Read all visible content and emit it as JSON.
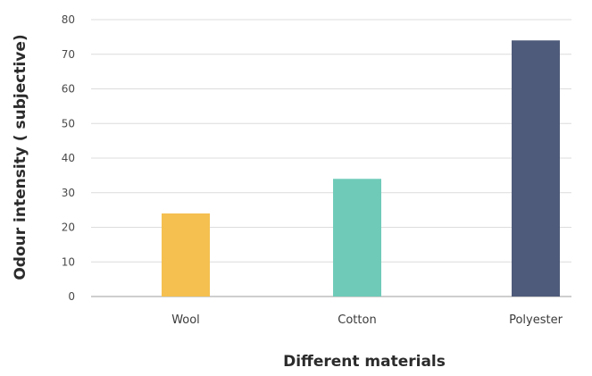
{
  "chart_data": {
    "type": "bar",
    "categories": [
      "Wool",
      "Cotton",
      "Polyester"
    ],
    "values": [
      24,
      34,
      74
    ],
    "colors": [
      "#F5C050",
      "#6FCBB8",
      "#4F5B7A"
    ],
    "title": "",
    "xlabel": "Different materials",
    "ylabel": "Odour intensity ( subjective)",
    "ylim": [
      0,
      80
    ],
    "yticks": [
      0,
      10,
      20,
      30,
      40,
      50,
      60,
      70,
      80
    ],
    "grid": true,
    "legend": "none"
  }
}
